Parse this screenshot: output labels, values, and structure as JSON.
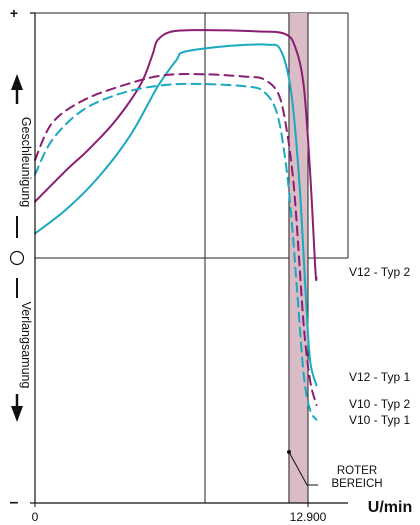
{
  "chart_data": {
    "type": "line",
    "x_axis": {
      "label": "U/min",
      "ticks": [
        {
          "value": 0,
          "label": "0"
        },
        {
          "value": 12900,
          "label": "12.900"
        }
      ],
      "range": [
        0,
        14000
      ]
    },
    "y_axis": {
      "label_positive": "Geschleunigung",
      "label_negative": "Verlangsamung",
      "top_label": "+",
      "bottom_label": "–",
      "range": [
        -1,
        1
      ]
    },
    "grid": true,
    "red_zone": {
      "label_line1": "ROTER",
      "label_line2": "BEREICH",
      "x_start": 12000,
      "x_end": 12900,
      "color": "#d9bcc6"
    },
    "series": [
      {
        "name": "V12 - Typ 2",
        "style": "solid",
        "color": "#8a1e72",
        "points": [
          [
            0,
            0.23
          ],
          [
            1500,
            0.36
          ],
          [
            2500,
            0.44
          ],
          [
            3800,
            0.56
          ],
          [
            5000,
            0.71
          ],
          [
            5550,
            0.83
          ],
          [
            5800,
            0.89
          ],
          [
            6500,
            0.925
          ],
          [
            8000,
            0.93
          ],
          [
            10500,
            0.925
          ],
          [
            11800,
            0.915
          ],
          [
            12300,
            0.86
          ],
          [
            12700,
            0.7
          ],
          [
            13000,
            0.35
          ],
          [
            13250,
            -0.05
          ],
          [
            13300,
            -0.08
          ]
        ]
      },
      {
        "name": "V12 - Typ 1",
        "style": "solid",
        "color": "#1aa9bf",
        "points": [
          [
            0,
            0.1
          ],
          [
            1500,
            0.2
          ],
          [
            3000,
            0.33
          ],
          [
            4500,
            0.5
          ],
          [
            5800,
            0.7
          ],
          [
            6700,
            0.81
          ],
          [
            7000,
            0.84
          ],
          [
            8500,
            0.86
          ],
          [
            10000,
            0.87
          ],
          [
            11000,
            0.87
          ],
          [
            11600,
            0.85
          ],
          [
            12100,
            0.68
          ],
          [
            12500,
            0.3
          ],
          [
            12800,
            -0.16
          ],
          [
            13000,
            -0.42
          ],
          [
            13300,
            -0.52
          ]
        ]
      },
      {
        "name": "V10 - Typ 2",
        "style": "dashed",
        "color": "#8a1e72",
        "points": [
          [
            0,
            0.4
          ],
          [
            800,
            0.55
          ],
          [
            2200,
            0.64
          ],
          [
            4000,
            0.7
          ],
          [
            6000,
            0.745
          ],
          [
            8000,
            0.75
          ],
          [
            10000,
            0.74
          ],
          [
            10800,
            0.73
          ],
          [
            11500,
            0.67
          ],
          [
            11900,
            0.52
          ],
          [
            12200,
            0.32
          ],
          [
            12400,
            0.1
          ],
          [
            12700,
            -0.28
          ],
          [
            13000,
            -0.5
          ],
          [
            13300,
            -0.6
          ]
        ]
      },
      {
        "name": "V10 - Typ 1",
        "style": "dashed",
        "color": "#1aa9bf",
        "points": [
          [
            0,
            0.34
          ],
          [
            800,
            0.48
          ],
          [
            2200,
            0.6
          ],
          [
            4000,
            0.67
          ],
          [
            6000,
            0.705
          ],
          [
            8000,
            0.71
          ],
          [
            10000,
            0.7
          ],
          [
            10800,
            0.68
          ],
          [
            11400,
            0.6
          ],
          [
            11800,
            0.42
          ],
          [
            12100,
            0.18
          ],
          [
            12400,
            -0.15
          ],
          [
            12700,
            -0.48
          ],
          [
            13000,
            -0.62
          ],
          [
            13300,
            -0.66
          ]
        ]
      }
    ]
  }
}
